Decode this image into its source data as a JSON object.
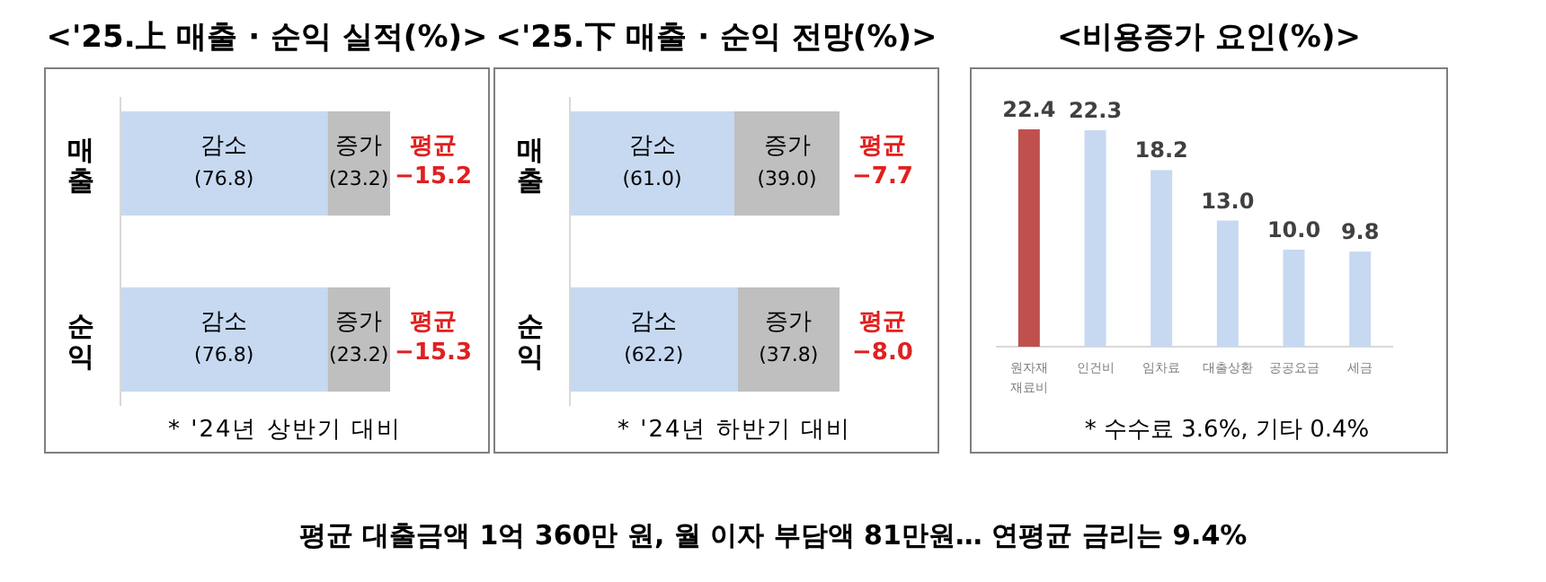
{
  "chart_data": [
    {
      "type": "bar",
      "orientation": "horizontal",
      "stacked": true,
      "title": "<'25.上 매출 · 순익 실적(%)>",
      "categories": [
        "매출",
        "순익"
      ],
      "series": [
        {
          "name": "감소",
          "color": "#c6d9f1",
          "values": [
            76.8,
            76.8
          ],
          "value_labels": [
            "(76.8)",
            "(76.8)"
          ]
        },
        {
          "name": "증가",
          "color": "#bfbfbf",
          "values": [
            23.2,
            23.2
          ],
          "value_labels": [
            "(23.2)",
            "(23.2)"
          ]
        }
      ],
      "annotations": [
        "평균 −15.2",
        "평균 −15.3",
        "* '24년 상반기 대비"
      ]
    },
    {
      "type": "bar",
      "orientation": "horizontal",
      "stacked": true,
      "title": "<'25.下 매출 · 순익 전망(%)>",
      "categories": [
        "매출",
        "순익"
      ],
      "series": [
        {
          "name": "감소",
          "color": "#c6d9f1",
          "values": [
            61.0,
            62.2
          ],
          "value_labels": [
            "(61.0)",
            "(62.2)"
          ]
        },
        {
          "name": "증가",
          "color": "#bfbfbf",
          "values": [
            39.0,
            37.8
          ],
          "value_labels": [
            "(39.0)",
            "(37.8)"
          ]
        }
      ],
      "annotations": [
        "평균 −7.7",
        "평균 −8.0",
        "* '24년 하반기 대비"
      ]
    },
    {
      "type": "bar",
      "title": "<비용증가 요인(%)>",
      "categories": [
        "원자재 재료비",
        "인건비",
        "임차료",
        "대출상환",
        "공공요금",
        "세금"
      ],
      "values": [
        22.4,
        22.3,
        18.2,
        13.0,
        10.0,
        9.8
      ],
      "colors": [
        "#c0504d",
        "#c6d9f1",
        "#c6d9f1",
        "#c6d9f1",
        "#c6d9f1",
        "#c6d9f1"
      ],
      "value_labels": [
        "22.4",
        "22.3",
        "18.2",
        "13.0",
        "10.0",
        "9.8"
      ],
      "annotations": [
        "* 수수료 3.6%, 기타 0.4%",
        "평균 대출금액 1억 360만 원, 월 이자 부담액 81만원… 연평균 금리는 9.4%"
      ]
    }
  ]
}
